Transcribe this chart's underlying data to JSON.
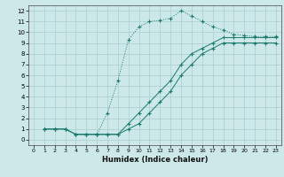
{
  "xlabel": "Humidex (Indice chaleur)",
  "bg_color": "#cce8e8",
  "line_color": "#1a7a6e",
  "grid_color": "#aacece",
  "xlim": [
    -0.5,
    23.5
  ],
  "ylim": [
    -0.5,
    12.5
  ],
  "xticks": [
    0,
    1,
    2,
    3,
    4,
    5,
    6,
    7,
    8,
    9,
    10,
    11,
    12,
    13,
    14,
    15,
    16,
    17,
    18,
    19,
    20,
    21,
    22,
    23
  ],
  "yticks": [
    0,
    1,
    2,
    3,
    4,
    5,
    6,
    7,
    8,
    9,
    10,
    11,
    12
  ],
  "series": [
    {
      "x": [
        1,
        2,
        3,
        4,
        5,
        6,
        7,
        8,
        9,
        10,
        11,
        12,
        13,
        14,
        15,
        16,
        17,
        18,
        19,
        20,
        21,
        22,
        23
      ],
      "y": [
        1,
        1,
        1,
        0.5,
        0.5,
        0.5,
        2.5,
        5.5,
        9.3,
        10.5,
        11.0,
        11.1,
        11.3,
        12.0,
        11.5,
        11.0,
        10.5,
        10.2,
        9.8,
        9.7,
        9.6,
        9.6,
        9.6
      ],
      "linestyle": ":"
    },
    {
      "x": [
        1,
        2,
        3,
        4,
        5,
        6,
        7,
        8,
        9,
        10,
        11,
        12,
        13,
        14,
        15,
        16,
        17,
        18,
        19,
        20,
        21,
        22,
        23
      ],
      "y": [
        1,
        1,
        1,
        0.5,
        0.5,
        0.5,
        0.5,
        0.5,
        1.5,
        2.5,
        3.5,
        4.5,
        5.5,
        7.0,
        8.0,
        8.5,
        9.0,
        9.5,
        9.5,
        9.5,
        9.5,
        9.5,
        9.5
      ],
      "linestyle": "-"
    },
    {
      "x": [
        1,
        2,
        3,
        4,
        5,
        6,
        7,
        8,
        9,
        10,
        11,
        12,
        13,
        14,
        15,
        16,
        17,
        18,
        19,
        20,
        21,
        22,
        23
      ],
      "y": [
        1,
        1,
        1,
        0.5,
        0.5,
        0.5,
        0.5,
        0.5,
        1.0,
        1.5,
        2.5,
        3.5,
        4.5,
        6.0,
        7.0,
        8.0,
        8.5,
        9.0,
        9.0,
        9.0,
        9.0,
        9.0,
        9.0
      ],
      "linestyle": "-"
    }
  ]
}
